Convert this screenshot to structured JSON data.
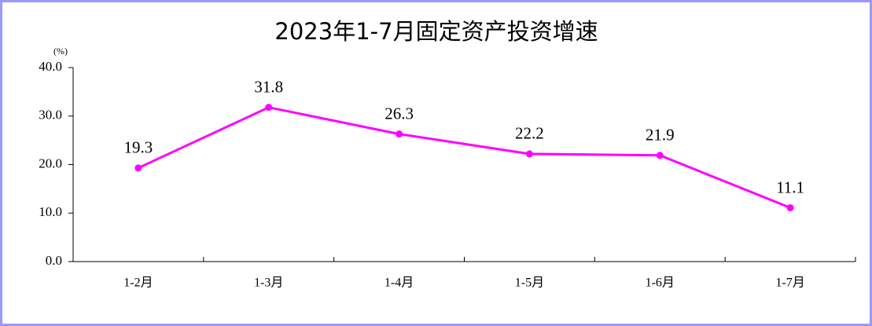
{
  "chart_data": {
    "type": "line",
    "title": "2023年1-7月固定资产投资增速",
    "y_unit": "(%)",
    "categories": [
      "1-2月",
      "1-3月",
      "1-4月",
      "1-5月",
      "1-6月",
      "1-7月"
    ],
    "series": [
      {
        "name": "固定资产投资增速",
        "color": "#ff00ff",
        "values": [
          19.3,
          31.8,
          26.3,
          22.2,
          21.9,
          11.1
        ]
      }
    ],
    "ylim": [
      0,
      40
    ],
    "yticks": [
      {
        "value": 0,
        "label": "0.0"
      },
      {
        "value": 10,
        "label": "10.0"
      },
      {
        "value": 20,
        "label": "20.0"
      },
      {
        "value": 30,
        "label": "30.0"
      },
      {
        "value": 40,
        "label": "40.0"
      }
    ],
    "grid": false
  }
}
